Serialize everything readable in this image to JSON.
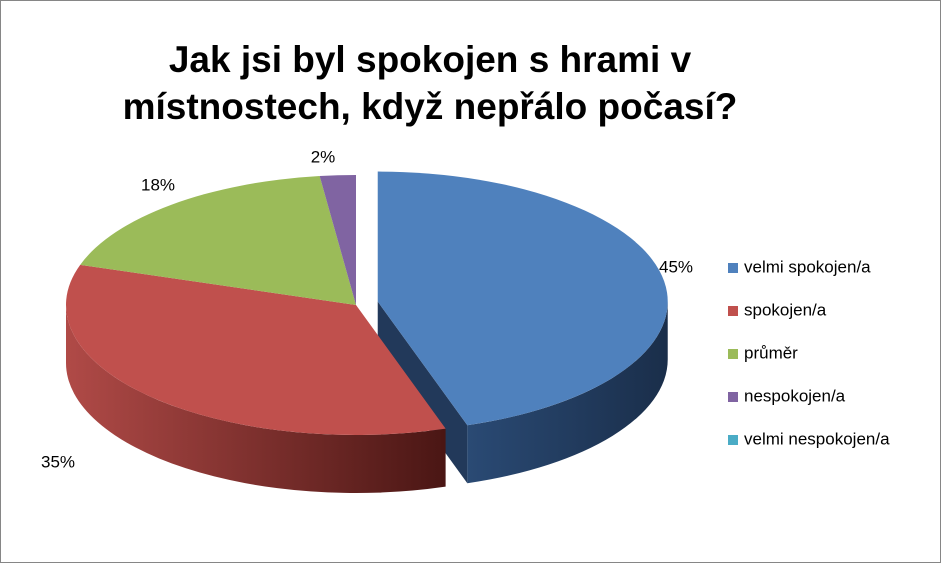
{
  "chart_data": {
    "type": "pie",
    "title": "Jak jsi byl spokojen s hrami v místnostech, když nepřálo počasí?",
    "categories": [
      "velmi spokojen/a",
      "spokojen/a",
      "průměr",
      "nespokojen/a",
      "velmi nespokojen/a"
    ],
    "values": [
      45,
      35,
      18,
      2,
      0
    ],
    "value_labels": [
      "45%",
      "35%",
      "18%",
      "2%",
      null
    ],
    "colors": [
      "#4f81bd",
      "#c0504d",
      "#9bbb59",
      "#8064a2",
      "#4bacc6"
    ],
    "legend": "right"
  }
}
